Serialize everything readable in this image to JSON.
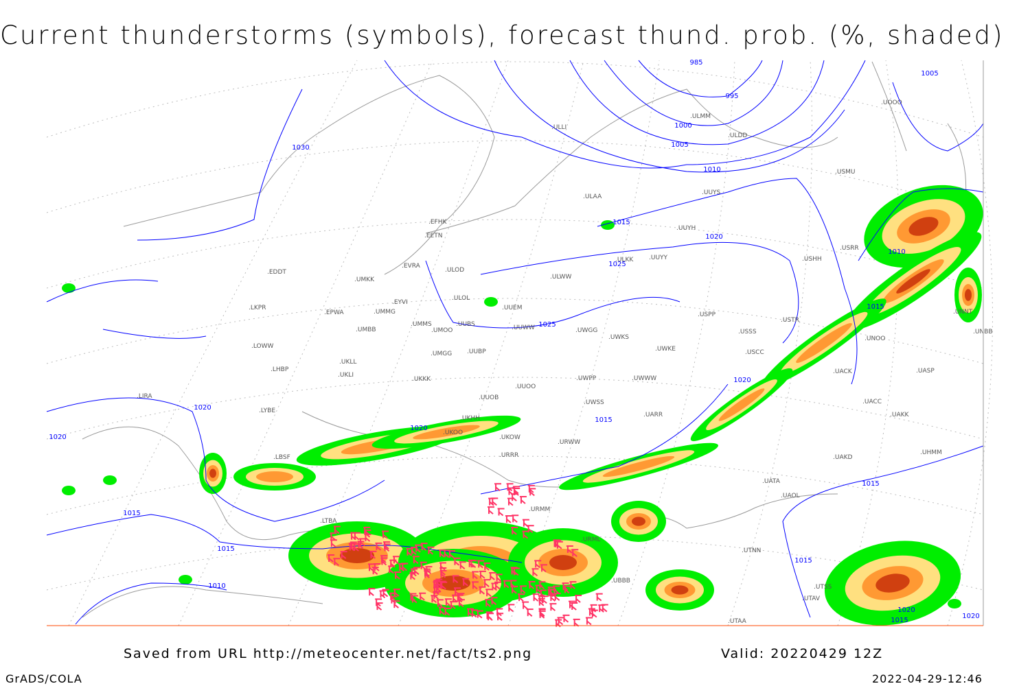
{
  "title": "Current thunderstorms (symbols), forecast thund. prob. (%, shaded)",
  "footer": {
    "saved_from": "Saved from URL http://meteocenter.net/fact/ts2.png",
    "valid": "Valid: 20220429 12Z",
    "software": "GrADS/COLA",
    "timestamp": "2022-04-29-12:46"
  },
  "colors": {
    "isobar": "#0000ff",
    "coastline": "#999999",
    "prob_low": "#00ee00",
    "prob_mid": "#ffe080",
    "prob_high": "#ff9933",
    "prob_very_high": "#d04010",
    "thunderstorm_symbol": "#ff3366"
  },
  "isobar_labels": [
    "985",
    "995",
    "1000",
    "1005",
    "1010",
    "1015",
    "1020",
    "1025",
    "1030",
    "1005",
    "1010",
    "1015",
    "1020",
    "1025",
    "1020",
    "1015",
    "1015",
    "1010",
    "1020",
    "1015",
    "1020",
    "1015",
    "1015",
    "1020",
    "1020",
    "1015"
  ],
  "stations": [
    "EFHK",
    "EETN",
    "ULOD",
    "EVRA",
    "UMKK",
    "EDDT",
    "ULOL",
    "EYVI",
    "UMMG",
    "UUEM",
    "EPWA",
    "LKPR",
    "UMMS",
    "UMOO",
    "UUBS",
    "UUWW",
    "UMBB",
    "LOWW",
    "UKLL",
    "UMGG",
    "UUBP",
    "LHBP",
    "UKLI",
    "UKKK",
    "UUOO",
    "UUOB",
    "LIRA",
    "LYBE",
    "UKHH",
    "UKOO",
    "LBSF",
    "LTBA",
    "UUYY",
    "ULWW",
    "ULLI",
    "ULAA",
    "UUYS",
    "UUYH",
    "ULKK",
    "UWGG",
    "UWKS",
    "UWKE",
    "UWPP",
    "UWSS",
    "USPP",
    "USSS",
    "USCC",
    "USTR",
    "USRR",
    "USHH",
    "UNOO",
    "UACK",
    "UASP",
    "UACC",
    "UAKK",
    "UAKD",
    "UATA",
    "UAOL",
    "UTNN",
    "UTAV",
    "UBBB",
    "URML",
    "URMM",
    "URWW",
    "URRR",
    "UKOW",
    "UARR",
    "UWWW",
    "ULMM",
    "ULDD",
    "USMU",
    "UOOO",
    "UNBB",
    "UNNT",
    "UTSS",
    "UTAA",
    "UHMM"
  ]
}
